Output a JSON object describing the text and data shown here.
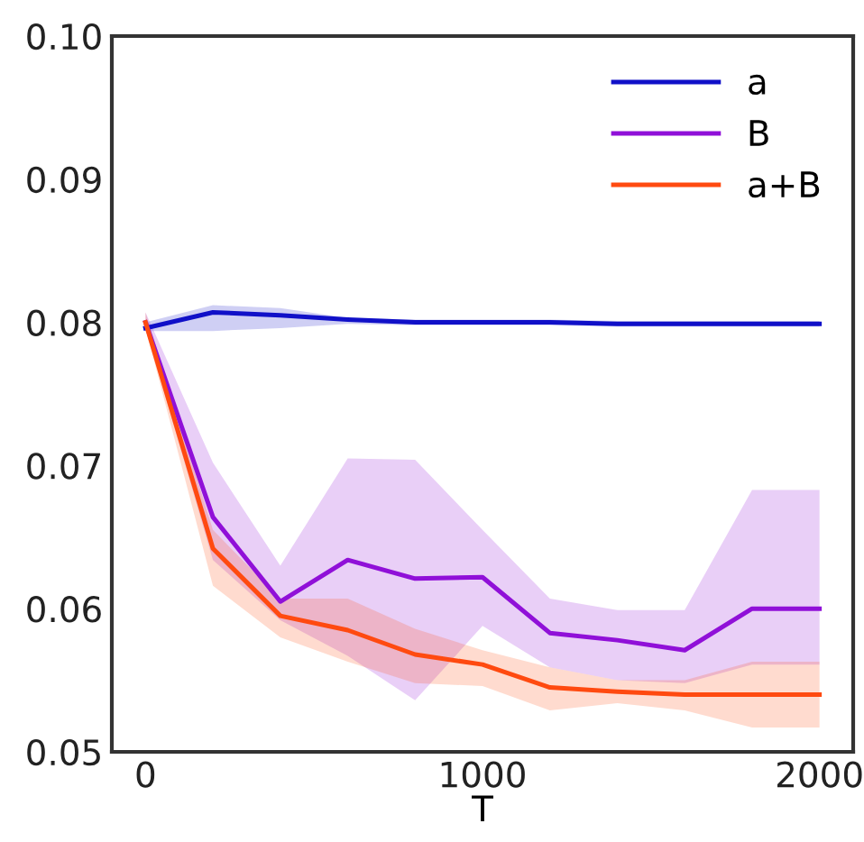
{
  "chart_data": {
    "type": "line",
    "xlabel": "T",
    "x": [
      0,
      200,
      400,
      600,
      800,
      1000,
      1200,
      1400,
      1600,
      1800,
      2000
    ],
    "series": [
      {
        "name": "a",
        "color": "#1010c8",
        "values": [
          0.0796,
          0.0807,
          0.0805,
          0.0802,
          0.08,
          0.08,
          0.08,
          0.0799,
          0.0799,
          0.0799,
          0.0799
        ],
        "lower": [
          0.0794,
          0.0794,
          0.0796,
          0.0799,
          0.0798,
          0.0798,
          0.0798,
          0.0797,
          0.0797,
          0.0797,
          0.0797
        ],
        "upper": [
          0.08,
          0.0812,
          0.081,
          0.0803,
          0.0802,
          0.0802,
          0.0802,
          0.0801,
          0.0801,
          0.0801,
          0.0801
        ]
      },
      {
        "name": "B",
        "color": "#9010d8",
        "values": [
          0.08,
          0.0664,
          0.0605,
          0.0634,
          0.0621,
          0.0622,
          0.0583,
          0.0578,
          0.0571,
          0.06,
          0.06
        ],
        "lower": [
          0.0796,
          0.0634,
          0.0592,
          0.0567,
          0.0536,
          0.0588,
          0.0559,
          0.055,
          0.0548,
          0.0561,
          0.0561
        ],
        "upper": [
          0.0807,
          0.0702,
          0.063,
          0.0705,
          0.0704,
          0.0655,
          0.0607,
          0.0599,
          0.0599,
          0.0683,
          0.0683
        ]
      },
      {
        "name": "a+B",
        "color": "#ff4a10",
        "values": [
          0.08,
          0.0642,
          0.0595,
          0.0585,
          0.0568,
          0.0561,
          0.0545,
          0.0542,
          0.054,
          0.054,
          0.054
        ],
        "lower": [
          0.0796,
          0.0616,
          0.058,
          0.0563,
          0.0548,
          0.0546,
          0.0529,
          0.0534,
          0.0529,
          0.0517,
          0.0517
        ],
        "upper": [
          0.0807,
          0.0655,
          0.0607,
          0.0607,
          0.0586,
          0.0571,
          0.0559,
          0.055,
          0.055,
          0.0563,
          0.0563
        ]
      }
    ],
    "xlim": [
      -100,
      2100
    ],
    "xticks": [
      0,
      1000,
      2000
    ],
    "ylim": [
      0.05,
      0.1
    ],
    "yticks": [
      {
        "value": 0.05,
        "label": "0.05"
      },
      {
        "value": 0.06,
        "label": "0.06"
      },
      {
        "value": 0.07,
        "label": "0.07"
      },
      {
        "value": 0.08,
        "label": "0.08"
      },
      {
        "value": 0.09,
        "label": "0.09"
      },
      {
        "value": 0.1,
        "label": "0.10"
      }
    ],
    "legend": "top right",
    "grid": false,
    "line_style": "solid",
    "marker": "none"
  }
}
